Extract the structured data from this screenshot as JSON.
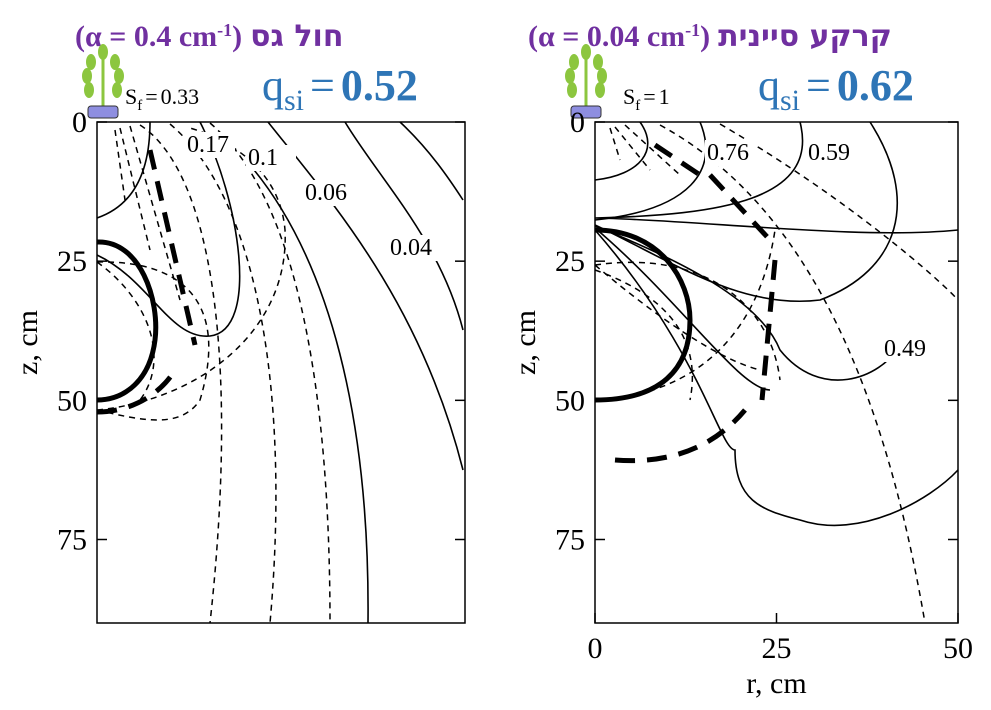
{
  "chart_data": [
    {
      "type": "contour",
      "title": "חול גס",
      "parameter": "(α = 0.4 cm",
      "parameter_sup": "-1",
      "parameter_close": ")",
      "q_symbol": "q",
      "q_sub": "si",
      "equals": "=",
      "q_value": 0.52,
      "sf_symbol": "S",
      "sf_sub": "f",
      "sf_value": 0.33,
      "contour_labels": [
        "0.17",
        "0.1",
        "0.06",
        "0.04"
      ],
      "ylabel": "z, cm",
      "xlim": [
        0,
        50
      ],
      "ylim": [
        0,
        90
      ],
      "yticks": [
        0,
        25,
        50,
        75
      ]
    },
    {
      "type": "contour",
      "title": "קרקע סיינית",
      "parameter": "(α = 0.04 cm",
      "parameter_sup": "-1",
      "parameter_close": ")",
      "q_symbol": "q",
      "q_sub": "si",
      "equals": "=",
      "q_value": 0.62,
      "sf_symbol": "S",
      "sf_sub": "f",
      "sf_value": 1,
      "contour_labels": [
        "0.76",
        "0.59",
        "0.49"
      ],
      "ylabel": "z, cm",
      "xlabel": "r, cm",
      "xlim": [
        0,
        50
      ],
      "ylim": [
        0,
        90
      ],
      "yticks": [
        0,
        25,
        50,
        75
      ],
      "xticks": [
        0,
        25,
        50
      ]
    }
  ]
}
